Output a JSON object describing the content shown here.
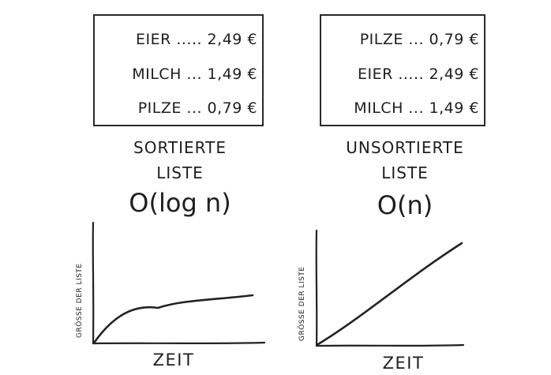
{
  "sorted": {
    "items": [
      "EIER ..... 2,49 €",
      "MILCH ... 1,49 €",
      "PILZE ... 0,79 €"
    ],
    "label_line1": "SORTIERTE",
    "label_line2": "LISTE",
    "complexity": "O(log n)",
    "y_axis_label": "GRÖSSE DER LISTE",
    "x_axis_label": "ZEIT",
    "curve_type": "logarithmic"
  },
  "unsorted": {
    "items": [
      "PILZE ... 0,79 €",
      "EIER ..... 2,49 €",
      "MILCH ... 1,49 €"
    ],
    "label_line1": "UNSORTIERTE",
    "label_line2": "LISTE",
    "complexity": "O(n)",
    "y_axis_label": "GRÖSSE DER LISTE",
    "x_axis_label": "ZEIT",
    "curve_type": "linear"
  },
  "colors": {
    "ink": "#222222",
    "background": "#ffffff"
  }
}
